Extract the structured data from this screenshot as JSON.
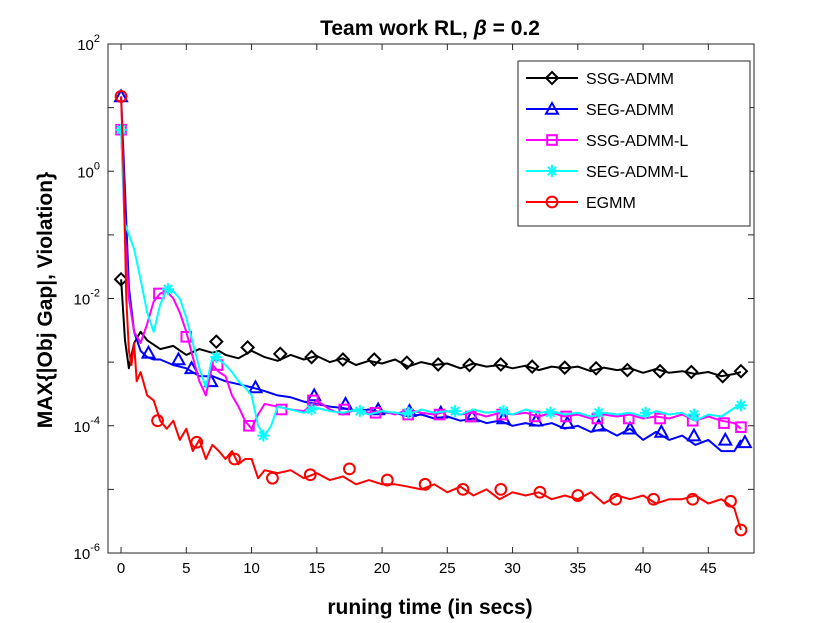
{
  "chart_data": {
    "type": "line",
    "title_prefix": "Team work RL, ",
    "title_symbol": "β",
    "title_suffix": " = 0.2",
    "xlabel": "runing time (in secs)",
    "ylabel": "MAX{|Obj Gap|, Violation}",
    "xlim": [
      -1,
      48.5
    ],
    "ylim": [
      1e-06,
      100
    ],
    "yscale": "log",
    "xticks": [
      0,
      5,
      10,
      15,
      20,
      25,
      30,
      35,
      40,
      45
    ],
    "yticks": [
      {
        "value": 1e-06,
        "base": "10",
        "exp": "-6"
      },
      {
        "value": 0.0001,
        "base": "10",
        "exp": "-4"
      },
      {
        "value": 0.01,
        "base": "10",
        "exp": "-2"
      },
      {
        "value": 1,
        "base": "10",
        "exp": "0"
      },
      {
        "value": 100,
        "base": "10",
        "exp": "2"
      }
    ],
    "legend_position": "top-right",
    "series": [
      {
        "name": "SSG-ADMM",
        "color": "#000000",
        "marker": "diamond",
        "x": [
          0,
          0.3,
          0.6,
          1,
          1.5,
          2,
          3,
          4,
          5,
          6,
          7,
          7.5,
          8,
          9,
          10,
          11,
          12,
          13,
          14,
          15,
          16,
          17,
          18,
          19,
          20,
          21,
          22,
          23,
          24,
          25,
          26,
          27,
          28,
          29,
          30,
          31,
          32,
          33,
          34,
          35,
          36,
          37,
          38,
          39,
          40,
          41,
          42,
          43,
          44,
          45,
          46,
          47,
          47.5
        ],
        "y": [
          0.02,
          0.0022,
          0.0008,
          0.002,
          0.003,
          0.0022,
          0.0016,
          0.0018,
          0.0013,
          0.0016,
          0.0014,
          0.0015,
          0.0013,
          0.00115,
          0.0015,
          0.0012,
          0.00105,
          0.0013,
          0.0011,
          0.00125,
          0.001,
          0.00115,
          0.0009,
          0.00105,
          0.00095,
          0.0011,
          0.00085,
          0.001,
          0.0009,
          0.00095,
          0.0008,
          0.00095,
          0.00085,
          0.0009,
          0.0008,
          0.00088,
          0.00075,
          0.00085,
          0.0008,
          0.00085,
          0.00072,
          0.00082,
          0.00075,
          0.0008,
          0.00068,
          0.00078,
          0.00068,
          0.00072,
          0.00065,
          0.0007,
          0.0006,
          0.00065,
          0.0007
        ],
        "markers_x": [
          0,
          7.3,
          9.7,
          12.2,
          14.6,
          17.0,
          19.4,
          21.9,
          24.3,
          26.7,
          29.1,
          31.5,
          34.0,
          36.4,
          38.8,
          41.3,
          43.7,
          46.1,
          47.5
        ],
        "markers_y": [
          0.02,
          0.0021,
          0.0017,
          0.00135,
          0.0012,
          0.0011,
          0.0011,
          0.00098,
          0.00092,
          0.0009,
          0.00092,
          0.00085,
          0.00082,
          0.0008,
          0.00075,
          0.00072,
          0.0007,
          0.0006,
          0.00072
        ]
      },
      {
        "name": "SEG-ADMM",
        "color": "#0000ff",
        "marker": "triangle",
        "x": [
          0,
          0.3,
          0.6,
          1,
          1.5,
          2,
          2.5,
          3,
          4,
          5,
          6,
          7,
          8,
          9,
          10,
          11,
          12,
          13,
          14,
          15,
          16,
          17,
          18,
          19,
          20,
          21,
          22,
          23,
          24,
          25,
          26,
          27,
          28,
          29,
          30,
          31,
          32,
          33,
          34,
          35,
          36,
          37,
          38,
          39,
          40,
          41,
          42,
          43,
          44,
          45,
          46,
          47,
          47.5
        ],
        "y": [
          15,
          0.5,
          0.015,
          0.003,
          0.0015,
          0.0012,
          0.0011,
          0.0011,
          0.0009,
          0.0008,
          0.0006,
          0.0006,
          0.0005,
          0.00045,
          0.0004,
          0.00035,
          0.0003,
          0.00028,
          0.00024,
          0.00022,
          0.0002,
          0.00019,
          0.00017,
          0.00018,
          0.00016,
          0.00016,
          0.00014,
          0.00015,
          0.00013,
          0.00014,
          0.00012,
          0.00013,
          0.00011,
          0.00012,
          0.0001,
          0.00011,
          0.0001,
          0.00011,
          9e-05,
          0.0001,
          8e-05,
          9e-05,
          7e-05,
          9e-05,
          6e-05,
          8e-05,
          6e-05,
          7e-05,
          5e-05,
          6e-05,
          4e-05,
          4e-05,
          6e-05
        ],
        "markers_x": [
          0,
          2.1,
          4.4,
          5.4,
          6.9,
          10.3,
          14.8,
          17.2,
          19.7,
          22.1,
          24.5,
          26.9,
          29.3,
          31.8,
          34.2,
          36.6,
          39.0,
          41.4,
          43.9,
          46.3,
          47.8
        ],
        "markers_y": [
          15,
          0.0014,
          0.0011,
          0.0008,
          0.0005,
          0.0004,
          0.0003,
          0.00022,
          0.00018,
          0.00017,
          0.00016,
          0.00014,
          0.00013,
          0.00012,
          0.00011,
          0.0001,
          9e-05,
          8e-05,
          7e-05,
          6e-05,
          5.5e-05
        ]
      },
      {
        "name": "SSG-ADMM-L",
        "color": "#ff00ff",
        "marker": "square",
        "x": [
          0,
          0.3,
          0.6,
          1,
          1.5,
          2,
          2.5,
          3,
          3.5,
          4,
          4.5,
          5,
          5.5,
          6,
          6.5,
          7,
          7.5,
          8,
          8.5,
          9,
          9.5,
          10,
          10.5,
          11,
          12,
          13,
          14,
          15,
          16,
          17,
          18,
          19,
          20,
          21,
          22,
          23,
          24,
          25,
          26,
          27,
          28,
          29,
          30,
          31,
          32,
          33,
          34,
          35,
          36,
          37,
          38,
          39,
          40,
          41,
          42,
          43,
          44,
          45,
          46,
          47,
          47.5
        ],
        "y": [
          4.5,
          0.1,
          0.01,
          0.003,
          0.002,
          0.004,
          0.009,
          0.012,
          0.013,
          0.01,
          0.006,
          0.003,
          0.0012,
          0.0005,
          0.0003,
          0.0009,
          0.0007,
          0.0006,
          0.0003,
          0.0002,
          0.00012,
          9e-05,
          0.00015,
          0.00022,
          0.0002,
          0.00018,
          0.00017,
          0.00025,
          0.00018,
          0.00015,
          0.00018,
          0.00016,
          0.00017,
          0.00015,
          0.00018,
          0.00016,
          0.00015,
          0.00017,
          0.00015,
          0.00016,
          0.00014,
          0.00016,
          0.00015,
          0.00016,
          0.00014,
          0.00016,
          0.00014,
          0.00015,
          0.00013,
          0.00015,
          0.00014,
          0.00015,
          0.00013,
          0.00014,
          0.00013,
          0.00015,
          0.00012,
          0.00014,
          0.00012,
          0.00011,
          9e-05
        ],
        "markers_x": [
          0,
          2.9,
          5.0,
          7.4,
          9.8,
          12.3,
          14.7,
          17.1,
          19.5,
          22.0,
          24.4,
          26.8,
          29.2,
          31.7,
          34.1,
          36.5,
          38.9,
          41.3,
          43.8,
          46.2,
          47.5
        ],
        "markers_y": [
          4.5,
          0.012,
          0.0025,
          0.0009,
          0.0001,
          0.00018,
          0.00025,
          0.00018,
          0.00016,
          0.00015,
          0.00015,
          0.00014,
          0.00015,
          0.00014,
          0.00014,
          0.00013,
          0.00013,
          0.00013,
          0.00012,
          0.00011,
          9.5e-05
        ]
      },
      {
        "name": "SEG-ADMM-L",
        "color": "#00ffff",
        "marker": "asterisk",
        "x": [
          0,
          0.3,
          0.6,
          1,
          1.5,
          2,
          2.5,
          3,
          3.5,
          4,
          4.5,
          5,
          5.5,
          6,
          6.5,
          7,
          7.5,
          8,
          8.5,
          9,
          9.5,
          10,
          10.5,
          11,
          11.5,
          12,
          13,
          14,
          15,
          16,
          17,
          18,
          19,
          20,
          21,
          22,
          23,
          24,
          25,
          26,
          27,
          28,
          29,
          30,
          31,
          32,
          33,
          34,
          35,
          36,
          37,
          38,
          39,
          40,
          41,
          42,
          43,
          44,
          45,
          46,
          47,
          47.5
        ],
        "y": [
          4.5,
          0.15,
          0.1,
          0.06,
          0.02,
          0.006,
          0.003,
          0.008,
          0.014,
          0.013,
          0.01,
          0.005,
          0.002,
          0.0008,
          0.0004,
          0.0012,
          0.0011,
          0.0009,
          0.0007,
          0.0005,
          0.0004,
          0.0003,
          0.0001,
          7e-05,
          0.0001,
          0.0002,
          0.00018,
          0.00016,
          0.00019,
          0.00017,
          0.00016,
          0.00018,
          0.00015,
          0.00017,
          0.00016,
          0.00015,
          0.00018,
          0.00016,
          0.00017,
          0.00015,
          0.00018,
          0.00016,
          0.00017,
          0.00015,
          0.00018,
          0.00016,
          0.00017,
          0.00015,
          0.00016,
          0.00014,
          0.00016,
          0.00015,
          0.00016,
          0.00014,
          0.00017,
          0.00015,
          0.00016,
          0.00012,
          0.00015,
          0.00014,
          0.00019,
          0.00021
        ],
        "markers_x": [
          0,
          3.6,
          7.3,
          10.9,
          14.6,
          18.3,
          22.0,
          25.6,
          29.3,
          32.9,
          36.6,
          40.2,
          43.9,
          47.5
        ],
        "markers_y": [
          4.5,
          0.014,
          0.0012,
          7e-05,
          0.00018,
          0.00017,
          0.00016,
          0.00017,
          0.00017,
          0.00016,
          0.00016,
          0.00016,
          0.00015,
          0.00021
        ]
      },
      {
        "name": "EGMM",
        "color": "#ff0000",
        "marker": "circle",
        "x": [
          0,
          0.2,
          0.4,
          0.6,
          0.8,
          1,
          1.2,
          1.5,
          2,
          2.5,
          3,
          3.5,
          4,
          4.5,
          5,
          5.5,
          6,
          6.5,
          7,
          7.5,
          8,
          8.5,
          9,
          9.5,
          10,
          10.5,
          11,
          12,
          13,
          14,
          15,
          16,
          17,
          18,
          19,
          20,
          21,
          22,
          23,
          24,
          25,
          26,
          27,
          28,
          29,
          30,
          31,
          32,
          33,
          34,
          35,
          36,
          37,
          38,
          39,
          40,
          41,
          42,
          43,
          44,
          45,
          46,
          47,
          47.5
        ],
        "y": [
          15,
          0.8,
          0.01,
          0.0015,
          0.0009,
          0.002,
          0.0005,
          0.0007,
          0.0003,
          0.00025,
          0.00012,
          9e-05,
          0.00012,
          6e-05,
          9e-05,
          4e-05,
          6e-05,
          3e-05,
          5e-05,
          4e-05,
          3e-05,
          4e-05,
          2.5e-05,
          3e-05,
          3e-05,
          1.5e-05,
          2e-05,
          1.8e-05,
          2e-05,
          1.5e-05,
          1.8e-05,
          1.4e-05,
          1.6e-05,
          1.2e-05,
          1.4e-05,
          1.2e-05,
          1.2e-05,
          1.1e-05,
          1e-05,
          1.2e-05,
          9e-06,
          1.1e-05,
          8e-06,
          1e-05,
          7e-06,
          9e-06,
          8e-06,
          9e-06,
          7e-06,
          8e-06,
          7e-06,
          9e-06,
          6e-06,
          8e-06,
          7e-06,
          8e-06,
          6e-06,
          7e-06,
          7e-06,
          8e-06,
          6e-06,
          7e-06,
          5e-06,
          2.3e-06
        ],
        "markers_x": [
          0,
          2.8,
          5.8,
          8.7,
          11.6,
          14.5,
          17.5,
          20.4,
          23.3,
          26.2,
          29.1,
          32.1,
          35.0,
          37.9,
          40.8,
          43.8,
          46.7,
          47.5
        ],
        "markers_y": [
          15,
          0.00012,
          5.5e-05,
          3e-05,
          1.5e-05,
          1.7e-05,
          2.1e-05,
          1.4e-05,
          1.2e-05,
          1e-05,
          1e-05,
          9e-06,
          8e-06,
          7e-06,
          7e-06,
          7e-06,
          6.5e-06,
          2.3e-06
        ]
      }
    ]
  }
}
